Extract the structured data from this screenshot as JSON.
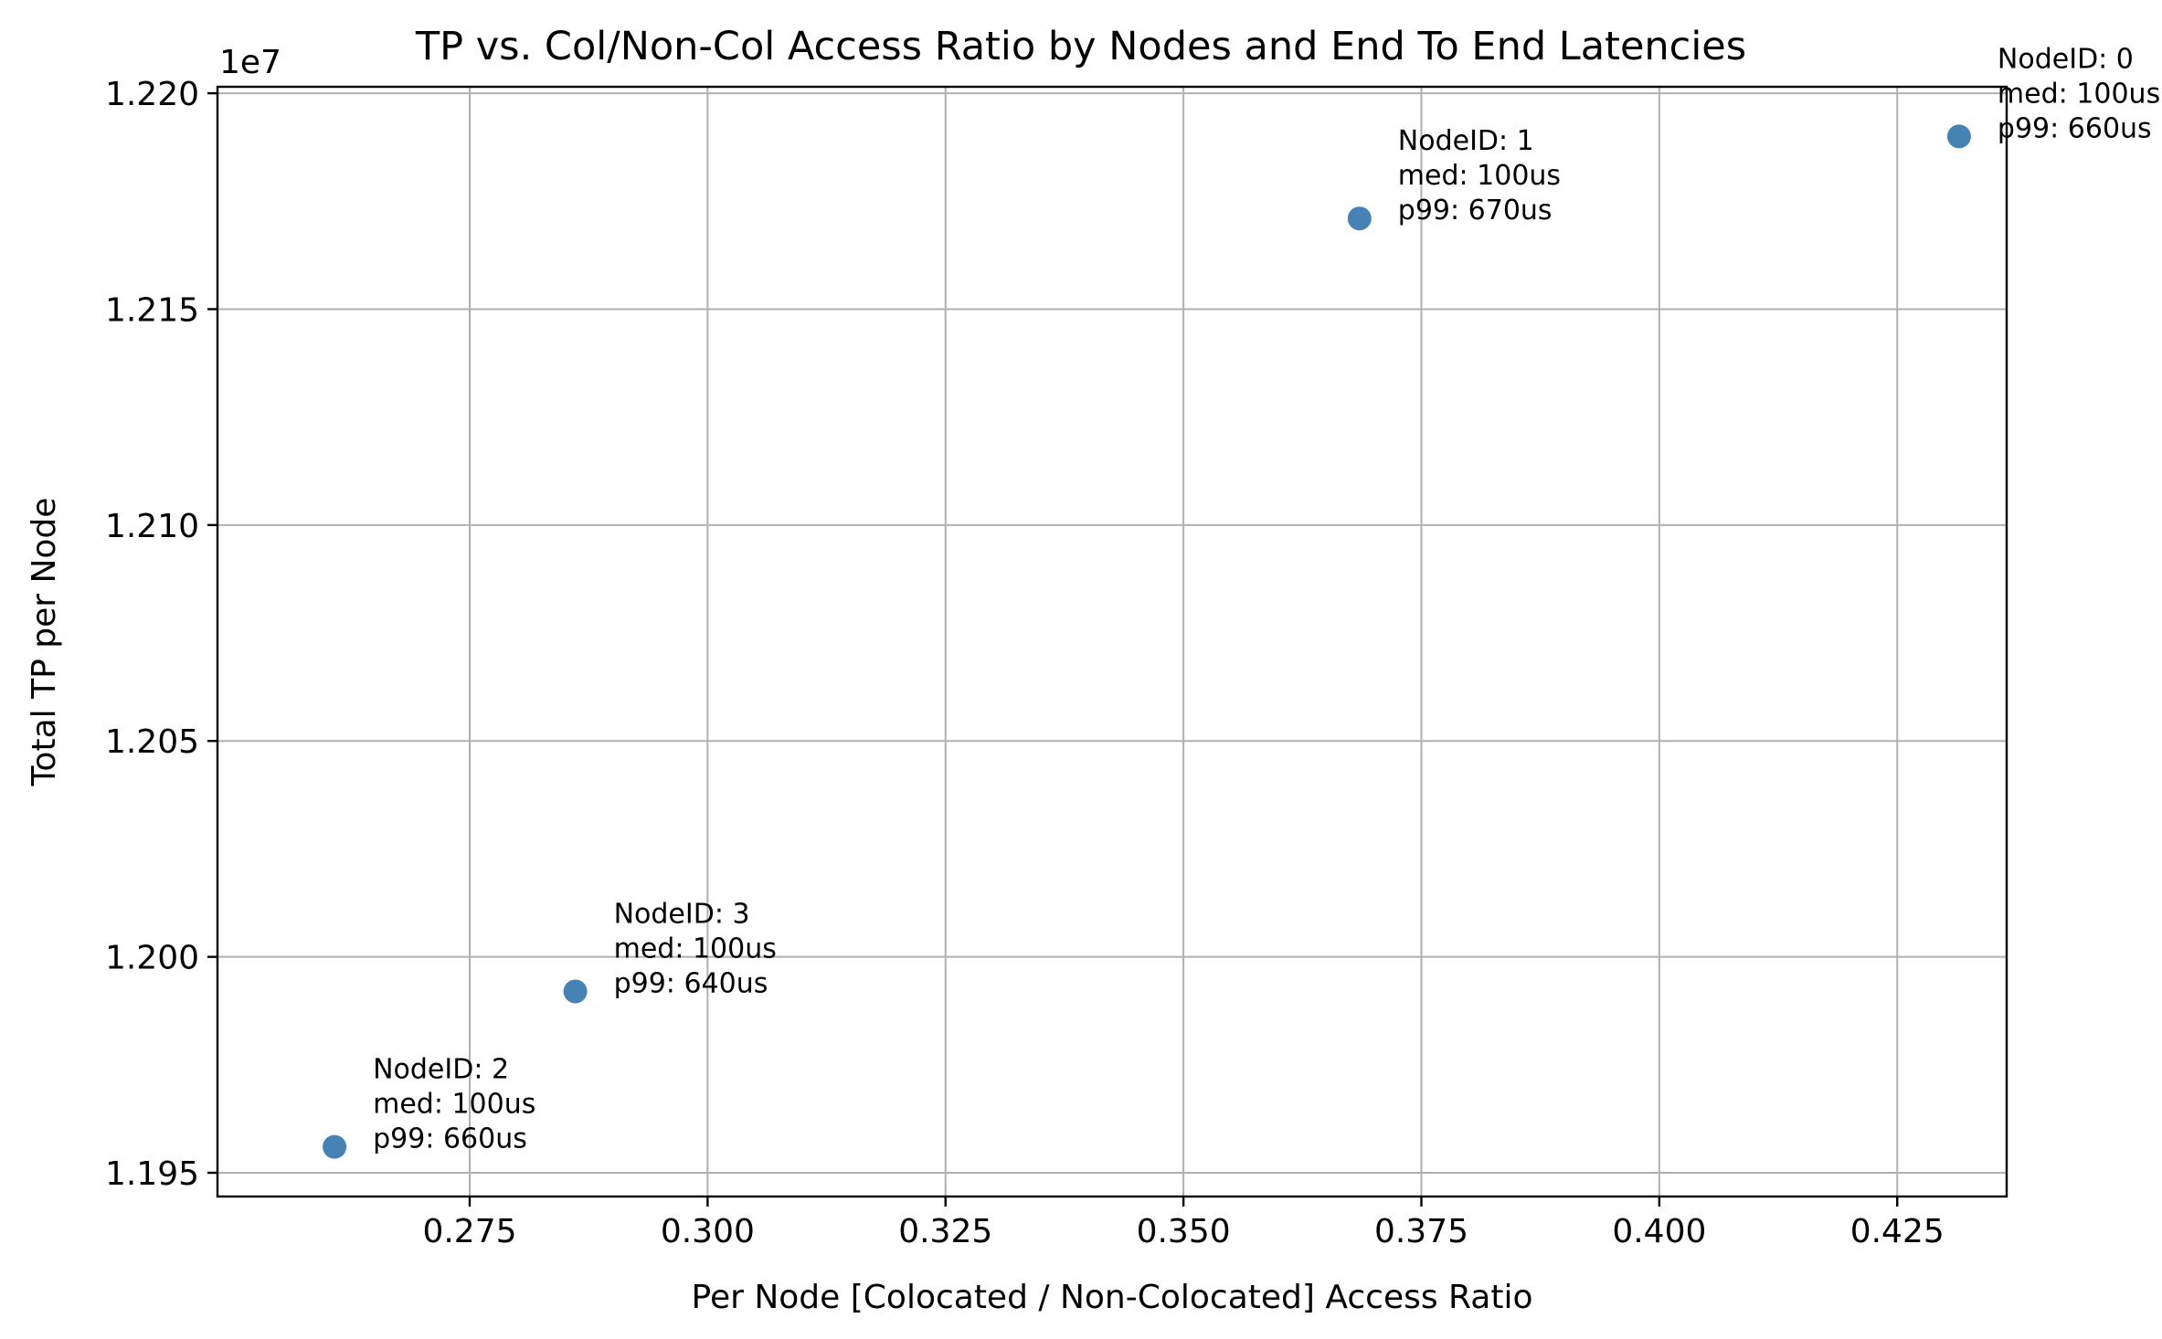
{
  "chart_data": {
    "type": "scatter",
    "title": "TP vs. Col/Non-Col Access Ratio by Nodes and End To End Latencies",
    "xlabel": "Per Node [Colocated / Non-Colocated] Access Ratio",
    "ylabel": "Total TP per Node",
    "y_offset_label": "1e7",
    "xlim": [
      0.2485,
      0.4365
    ],
    "ylim": [
      1.19445,
      1.22015
    ],
    "x_ticks": [
      0.275,
      0.3,
      0.325,
      0.35,
      0.375,
      0.4,
      0.425
    ],
    "x_tick_labels": [
      "0.275",
      "0.300",
      "0.325",
      "0.350",
      "0.375",
      "0.400",
      "0.425"
    ],
    "y_ticks": [
      1.195,
      1.2,
      1.205,
      1.21,
      1.215,
      1.22
    ],
    "y_tick_labels": [
      "1.195",
      "1.200",
      "1.205",
      "1.210",
      "1.215",
      "1.220"
    ],
    "grid": true,
    "marker_color": "#4682b4",
    "points": [
      {
        "x": 0.4315,
        "y": 1.219,
        "label": [
          "NodeID: 0",
          "med: 100us",
          "p99: 660us"
        ]
      },
      {
        "x": 0.3685,
        "y": 1.2171,
        "label": [
          "NodeID: 1",
          "med: 100us",
          "p99: 670us"
        ]
      },
      {
        "x": 0.2608,
        "y": 1.1956,
        "label": [
          "NodeID: 2",
          "med: 100us",
          "p99: 660us"
        ]
      },
      {
        "x": 0.2861,
        "y": 1.1992,
        "label": [
          "NodeID: 3",
          "med: 100us",
          "p99: 640us"
        ]
      }
    ]
  }
}
